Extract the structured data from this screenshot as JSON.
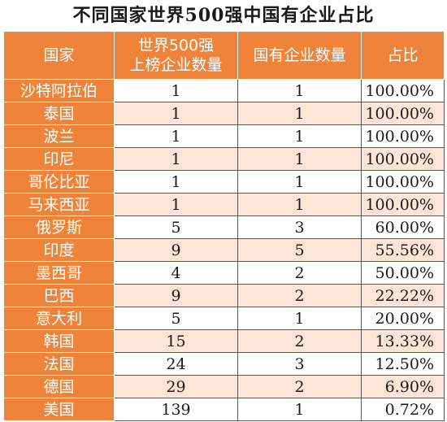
{
  "title": "不同国家世界500强中国有企业占比",
  "headers": {
    "country": "国家",
    "top500_line1": "世界500强",
    "top500_line2": "上榜企业数量",
    "soe": "国有企业数量",
    "ratio": "占比"
  },
  "rows": [
    {
      "country": "沙特阿拉伯",
      "top500": "1",
      "soe": "1",
      "ratio": "100.00%"
    },
    {
      "country": "泰国",
      "top500": "1",
      "soe": "1",
      "ratio": "100.00%"
    },
    {
      "country": "波兰",
      "top500": "1",
      "soe": "1",
      "ratio": "100.00%"
    },
    {
      "country": "印尼",
      "top500": "1",
      "soe": "1",
      "ratio": "100.00%"
    },
    {
      "country": "哥伦比亚",
      "top500": "1",
      "soe": "1",
      "ratio": "100.00%"
    },
    {
      "country": "马来西亚",
      "top500": "1",
      "soe": "1",
      "ratio": "100.00%"
    },
    {
      "country": "俄罗斯",
      "top500": "5",
      "soe": "3",
      "ratio": "60.00%"
    },
    {
      "country": "印度",
      "top500": "9",
      "soe": "5",
      "ratio": "55.56%"
    },
    {
      "country": "墨西哥",
      "top500": "4",
      "soe": "2",
      "ratio": "50.00%"
    },
    {
      "country": "巴西",
      "top500": "9",
      "soe": "2",
      "ratio": "22.22%"
    },
    {
      "country": "意大利",
      "top500": "5",
      "soe": "1",
      "ratio": "20.00%"
    },
    {
      "country": "韩国",
      "top500": "15",
      "soe": "2",
      "ratio": "13.33%"
    },
    {
      "country": "法国",
      "top500": "24",
      "soe": "3",
      "ratio": "12.50%"
    },
    {
      "country": "德国",
      "top500": "29",
      "soe": "2",
      "ratio": "6.90%"
    },
    {
      "country": "美国",
      "top500": "139",
      "soe": "1",
      "ratio": "0.72%"
    }
  ],
  "colors": {
    "header_bg": "#ee8339",
    "alt_row_bg": "#fce4d6"
  }
}
